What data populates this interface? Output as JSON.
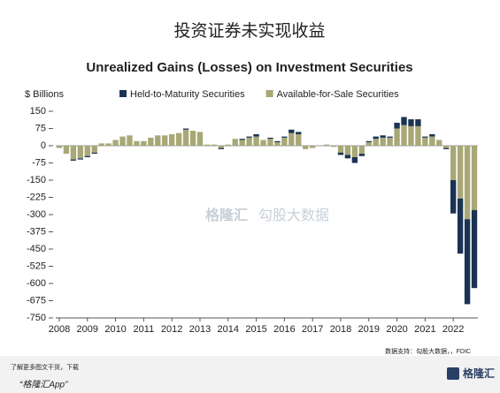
{
  "header": {
    "title": "投资证券未实现收益"
  },
  "chart_data": {
    "type": "bar",
    "stacked": true,
    "title": "Unrealized Gains (Losses) on Investment Securities",
    "ylabel": "$ Billions",
    "categories": [
      "2008",
      null,
      null,
      null,
      "2009",
      null,
      null,
      null,
      "2010",
      null,
      null,
      null,
      "2011",
      null,
      null,
      null,
      "2012",
      null,
      null,
      null,
      "2013",
      null,
      null,
      null,
      "2014",
      null,
      null,
      null,
      "2015",
      null,
      null,
      null,
      "2016",
      null,
      null,
      null,
      "2017",
      null,
      null,
      null,
      "2018",
      null,
      null,
      null,
      "2019",
      null,
      null,
      null,
      "2020",
      null,
      null,
      null,
      "2021",
      null,
      null,
      null,
      "2022",
      null,
      null,
      null
    ],
    "series": [
      {
        "name": "Available-for-Sale Securities",
        "color": "#a8a877",
        "values": [
          -10,
          -35,
          -60,
          -55,
          -45,
          -30,
          10,
          10,
          25,
          40,
          45,
          20,
          20,
          35,
          45,
          45,
          50,
          55,
          70,
          65,
          60,
          5,
          5,
          -10,
          5,
          30,
          25,
          35,
          40,
          25,
          30,
          15,
          35,
          55,
          50,
          -15,
          -10,
          0,
          5,
          -5,
          -30,
          -40,
          -50,
          -35,
          15,
          30,
          35,
          35,
          75,
          90,
          85,
          85,
          35,
          40,
          25,
          -10,
          -150,
          -230,
          -320,
          -280
        ]
      },
      {
        "name": "Held-to-Maturity Securities",
        "color": "#1b3352",
        "values": [
          0,
          0,
          -5,
          -5,
          -5,
          -5,
          0,
          0,
          0,
          0,
          0,
          0,
          0,
          0,
          0,
          0,
          0,
          0,
          5,
          0,
          0,
          0,
          0,
          -5,
          0,
          0,
          5,
          5,
          10,
          0,
          5,
          5,
          5,
          15,
          10,
          0,
          0,
          0,
          0,
          0,
          -10,
          -15,
          -25,
          -10,
          5,
          10,
          10,
          5,
          25,
          35,
          30,
          30,
          5,
          10,
          0,
          -5,
          -145,
          -240,
          -370,
          -340
        ]
      }
    ],
    "legend_order": [
      1,
      0
    ],
    "ylim": [
      -750,
      150
    ],
    "yticks": [
      150,
      75,
      0,
      -75,
      -150,
      -225,
      -300,
      -375,
      -450,
      -525,
      -600,
      -675,
      -750
    ],
    "grid": false
  },
  "source": "数据支持：勾股大数据，，FDIC",
  "watermark": {
    "left": "格隆汇",
    "right": "勾股大数据"
  },
  "footer": {
    "line1": "了解更多图文干货，下载",
    "line2": "“格隆汇App”",
    "logo": "格隆汇"
  }
}
